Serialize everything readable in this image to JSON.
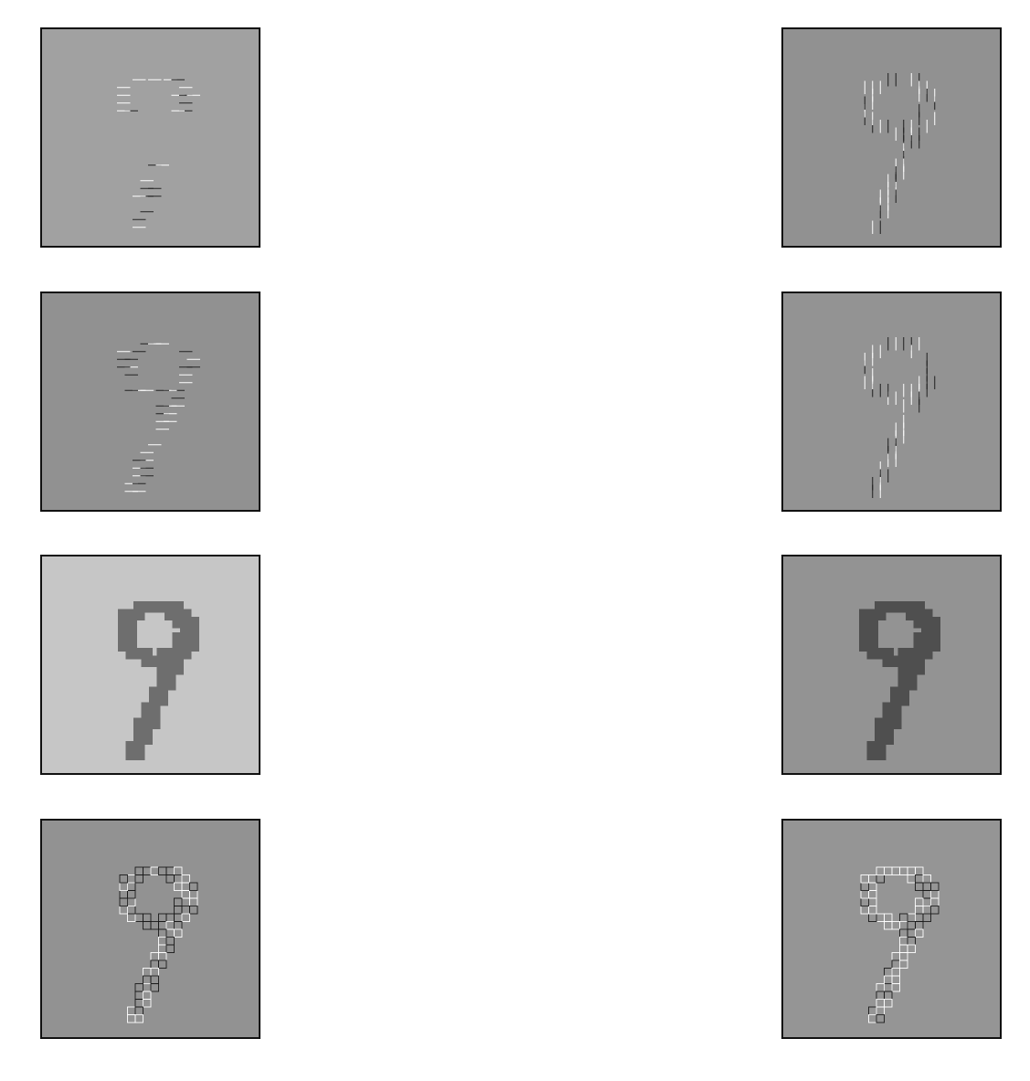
{
  "figure": {
    "panels": [
      {
        "id": "p-0-0",
        "name": "feature-map-r1-c1",
        "background": "#a1a1a1",
        "style": "horizontal-edges-sparse"
      },
      {
        "id": "p-0-1",
        "name": "feature-map-r1-c2",
        "background": "#919191",
        "style": "vertical-edges"
      },
      {
        "id": "p-1-0",
        "name": "feature-map-r2-c1",
        "background": "#919191",
        "style": "horizontal-edges"
      },
      {
        "id": "p-1-1",
        "name": "feature-map-r2-c2",
        "background": "#939393",
        "style": "vertical-edges-full"
      },
      {
        "id": "p-2-0",
        "name": "feature-map-r3-c1",
        "background": "#c6c6c6",
        "style": "filled-digit",
        "stroke": "#6e6e6e"
      },
      {
        "id": "p-2-1",
        "name": "feature-map-r3-c2",
        "background": "#939393",
        "style": "filled-digit",
        "stroke": "#4f4f4f"
      },
      {
        "id": "p-3-0",
        "name": "feature-map-r4-c1",
        "background": "#929292",
        "style": "outline-edges"
      },
      {
        "id": "p-3-1",
        "name": "feature-map-r4-c2",
        "background": "#959595",
        "style": "outline-edges"
      }
    ]
  }
}
